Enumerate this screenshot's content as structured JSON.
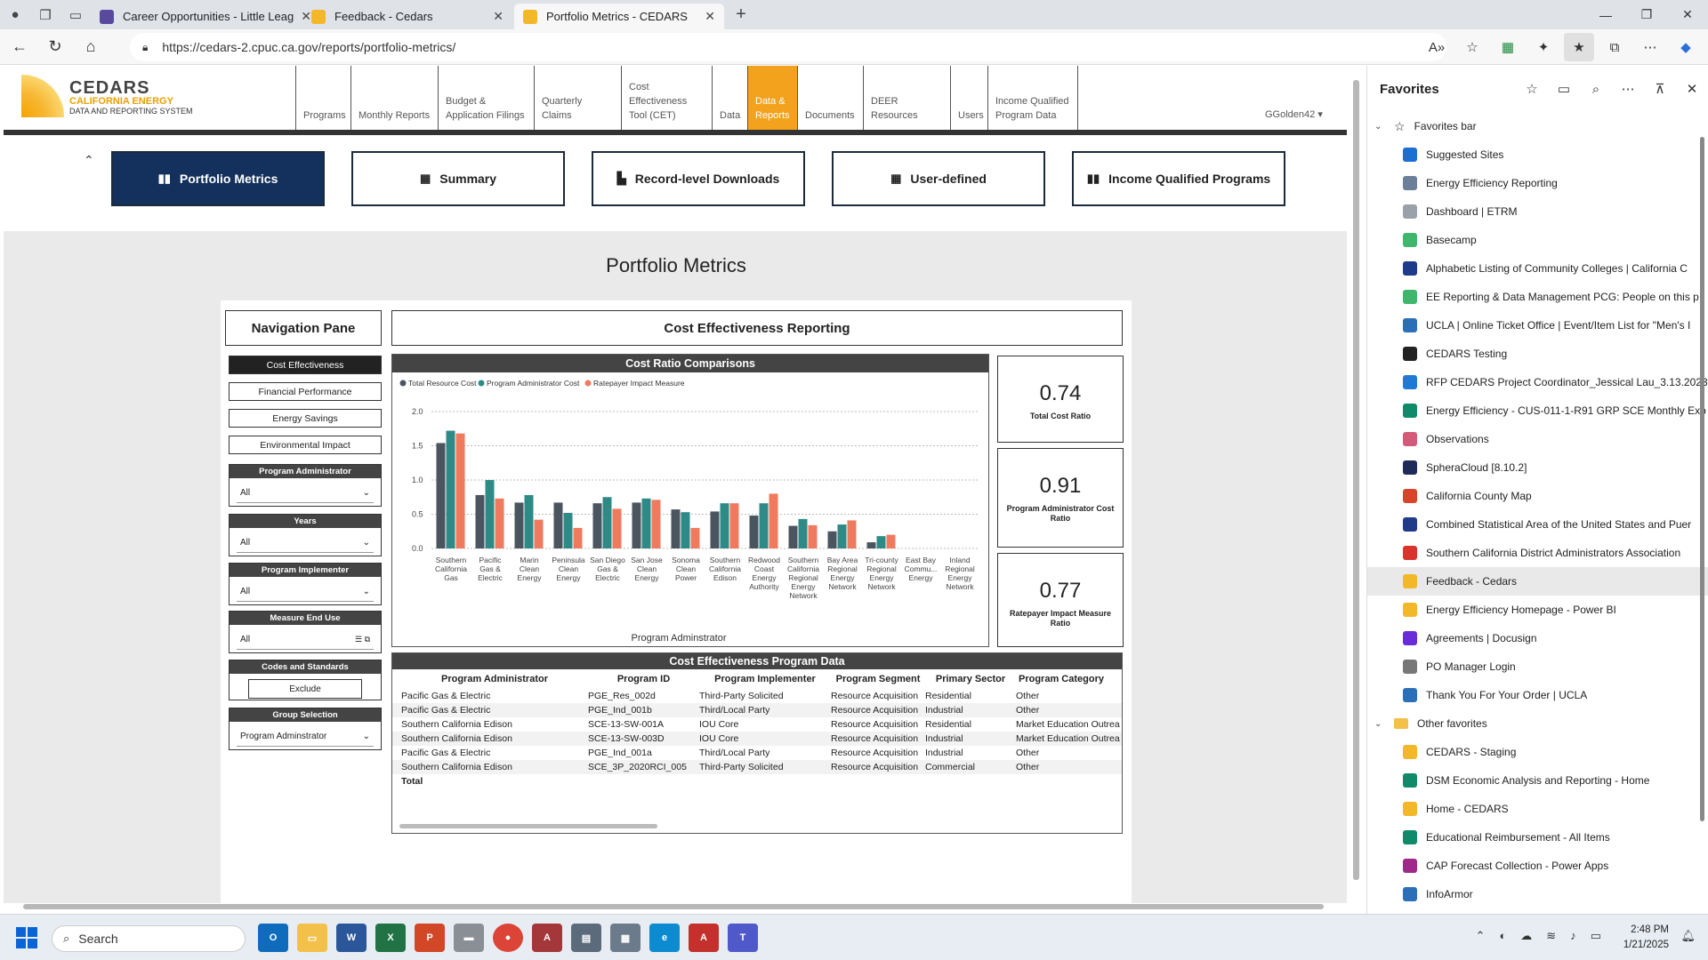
{
  "browser": {
    "tabs": [
      {
        "label": "Career Opportunities - Little Leag",
        "favicon_color": "#5a4a9e"
      },
      {
        "label": "Feedback - Cedars",
        "favicon_color": "#f3b829"
      },
      {
        "label": "Portfolio Metrics - CEDARS",
        "favicon_color": "#f3b829"
      }
    ],
    "new_tab": "+",
    "url": "https://cedars-2.cpuc.ca.gov/reports/portfolio-metrics/"
  },
  "site": {
    "logo": {
      "line1": "CEDARS",
      "line2": "CALIFORNIA ENERGY",
      "line3": "DATA AND REPORTING SYSTEM"
    },
    "menu": [
      {
        "label": "Programs"
      },
      {
        "label": "Monthly Reports"
      },
      {
        "label": "Budget & Application Filings"
      },
      {
        "label": "Quarterly Claims"
      },
      {
        "label": "Cost Effectiveness Tool (CET)"
      },
      {
        "label": "Data"
      },
      {
        "label": "Data & Reports"
      },
      {
        "label": "Documents"
      },
      {
        "label": "DEER Resources"
      },
      {
        "label": "Users"
      },
      {
        "label": "Income Qualified Program Data"
      }
    ],
    "user": "GGolden42 ▾",
    "collapse": "⌃"
  },
  "report_tabs": [
    {
      "label": "Portfolio Metrics",
      "icon": "bar-chart-icon"
    },
    {
      "label": "Summary",
      "icon": "table-icon"
    },
    {
      "label": "Record-level Downloads",
      "icon": "file-icon"
    },
    {
      "label": "User-defined",
      "icon": "table-icon"
    },
    {
      "label": "Income Qualified Programs",
      "icon": "bar-chart-icon"
    }
  ],
  "page_title": "Portfolio Metrics",
  "nav_pane": {
    "title": "Navigation Pane",
    "buttons": [
      "Cost Effectiveness",
      "Financial Performance",
      "Energy Savings",
      "Environmental Impact"
    ],
    "slicers": [
      {
        "title": "Program Administrator",
        "value": "All"
      },
      {
        "title": "Years",
        "value": "All"
      },
      {
        "title": "Program Implementer",
        "value": "All"
      },
      {
        "title": "Measure End Use",
        "value": "All"
      }
    ],
    "codes": {
      "title": "Codes and Standards",
      "value": "Exclude"
    },
    "group": {
      "title": "Group Selection",
      "value": "Program Adminstrator"
    }
  },
  "section_title": "Cost Effectiveness Reporting",
  "kpis": [
    {
      "value": "0.74",
      "label": "Total Cost Ratio"
    },
    {
      "value": "0.91",
      "label": "Program Administrator Cost Ratio"
    },
    {
      "value": "0.77",
      "label": "Ratepayer Impact Measure Ratio"
    }
  ],
  "chart_data": {
    "type": "bar",
    "title": "Cost Ratio Comparisons",
    "xlabel": "Program Adminstrator",
    "ylabel": "",
    "ylim": [
      0,
      2.0
    ],
    "yticks": [
      "0.0",
      "0.5",
      "1.0",
      "1.5",
      "2.0"
    ],
    "legend_position": "top-left",
    "categories": [
      "Southern California Gas",
      "Pacific Gas & Electric",
      "Marin Clean Energy",
      "Peninsula Clean Energy",
      "San Diego Gas & Electric",
      "San Jose Clean Energy",
      "Sonoma Clean Power",
      "Southern California Edison",
      "Redwood Coast Energy Authority",
      "Southern California Regional Energy Network",
      "Bay Area Regional Energy Network",
      "Tri-county Regional Energy Network",
      "East Bay Commu... Energy",
      "Inland Regional Energy Network"
    ],
    "series": [
      {
        "name": "Total Resource Cost",
        "color": "#4a5560",
        "values": [
          1.54,
          0.78,
          0.67,
          0.67,
          0.66,
          0.67,
          0.57,
          0.54,
          0.48,
          0.33,
          0.25,
          0.09,
          0,
          0
        ]
      },
      {
        "name": "Program Administrator Cost",
        "color": "#2e8a86",
        "values": [
          1.72,
          1.0,
          0.78,
          0.52,
          0.75,
          0.73,
          0.53,
          0.66,
          0.66,
          0.43,
          0.35,
          0.18,
          0,
          0
        ]
      },
      {
        "name": "Ratepayer Impact Measure",
        "color": "#f07a5e",
        "values": [
          1.68,
          0.73,
          0.42,
          0.3,
          0.58,
          0.71,
          0.3,
          0.66,
          0.8,
          0.34,
          0.41,
          0.2,
          0,
          0
        ]
      }
    ]
  },
  "table": {
    "title": "Cost Effectiveness Program Data",
    "columns": [
      "Program Administrator",
      "Program ID",
      "Program Implementer",
      "Program Segment",
      "Primary Sector",
      "Program Category"
    ],
    "rows": [
      [
        "Pacific Gas & Electric",
        "PGE_Res_002d",
        "Third-Party Solicited",
        "Resource Acquisition",
        "Residential",
        "Other"
      ],
      [
        "Pacific Gas & Electric",
        "PGE_Ind_001b",
        "Third/Local Party",
        "Resource Acquisition",
        "Industrial",
        "Other"
      ],
      [
        "Southern California Edison",
        "SCE-13-SW-001A",
        "IOU Core",
        "Resource Acquisition",
        "Residential",
        "Market Education Outrea"
      ],
      [
        "Southern California Edison",
        "SCE-13-SW-003D",
        "IOU Core",
        "Resource Acquisition",
        "Industrial",
        "Market Education Outrea"
      ],
      [
        "Pacific Gas & Electric",
        "PGE_Ind_001a",
        "Third/Local Party",
        "Resource Acquisition",
        "Industrial",
        "Other"
      ],
      [
        "Southern California Edison",
        "SCE_3P_2020RCI_005",
        "Third-Party Solicited",
        "Resource Acquisition",
        "Commercial",
        "Other"
      ]
    ],
    "total_label": "Total"
  },
  "favorites": {
    "title": "Favorites",
    "bar_label": "Favorites bar",
    "items": [
      {
        "label": "Suggested Sites",
        "color": "#1a6fd1"
      },
      {
        "label": "Energy Efficiency Reporting",
        "color": "#6b7f99"
      },
      {
        "label": "Dashboard | ETRM",
        "color": "#9aa1a8"
      },
      {
        "label": "Basecamp",
        "color": "#3fb66b"
      },
      {
        "label": "Alphabetic Listing of Community Colleges | California C",
        "color": "#1e3a8a"
      },
      {
        "label": "EE Reporting & Data Management PCG: People on this p",
        "color": "#3fb66b"
      },
      {
        "label": "UCLA | Online Ticket Office | Event/Item List for \"Men's I",
        "color": "#2a6fb8"
      },
      {
        "label": "CEDARS Testing",
        "color": "#222222"
      },
      {
        "label": "RFP CEDARS Project Coordinator_Jessical Lau_3.13.2023",
        "color": "#1f7ad6"
      },
      {
        "label": "Energy Efficiency - CUS-011-1-R91 GRP SCE Monthly Exp",
        "color": "#0f8a6b"
      },
      {
        "label": "Observations",
        "color": "#d45a7a"
      },
      {
        "label": "SpheraCloud [8.10.2]",
        "color": "#1e2b5a"
      },
      {
        "label": "California County Map",
        "color": "#d9442b"
      },
      {
        "label": "Combined Statistical Area of the United States and Puer",
        "color": "#1f3b8a"
      },
      {
        "label": "Southern California District Administrators Association",
        "color": "#d9342b"
      },
      {
        "label": "Feedback - Cedars",
        "color": "#f3b829"
      },
      {
        "label": "Energy Efficiency Homepage - Power BI",
        "color": "#f3b829"
      },
      {
        "label": "Agreements | Docusign",
        "color": "#6a2bd9"
      },
      {
        "label": "PO Manager Login",
        "color": "#777777"
      },
      {
        "label": "Thank You For Your Order | UCLA",
        "color": "#2a6fb8"
      }
    ],
    "other_label": "Other favorites",
    "other_items": [
      {
        "label": "CEDARS - Staging",
        "color": "#f3b829"
      },
      {
        "label": "DSM Economic Analysis and Reporting - Home",
        "color": "#0f8a6b"
      },
      {
        "label": "Home - CEDARS",
        "color": "#f3b829"
      },
      {
        "label": "Educational Reimbursement - All Items",
        "color": "#0f8a6b"
      },
      {
        "label": "CAP Forecast Collection - Power Apps",
        "color": "#a0288a"
      },
      {
        "label": "InfoArmor",
        "color": "#2a6fb8"
      }
    ]
  },
  "taskbar": {
    "search": "Search",
    "time": "2:48 PM",
    "date": "1/21/2025"
  }
}
